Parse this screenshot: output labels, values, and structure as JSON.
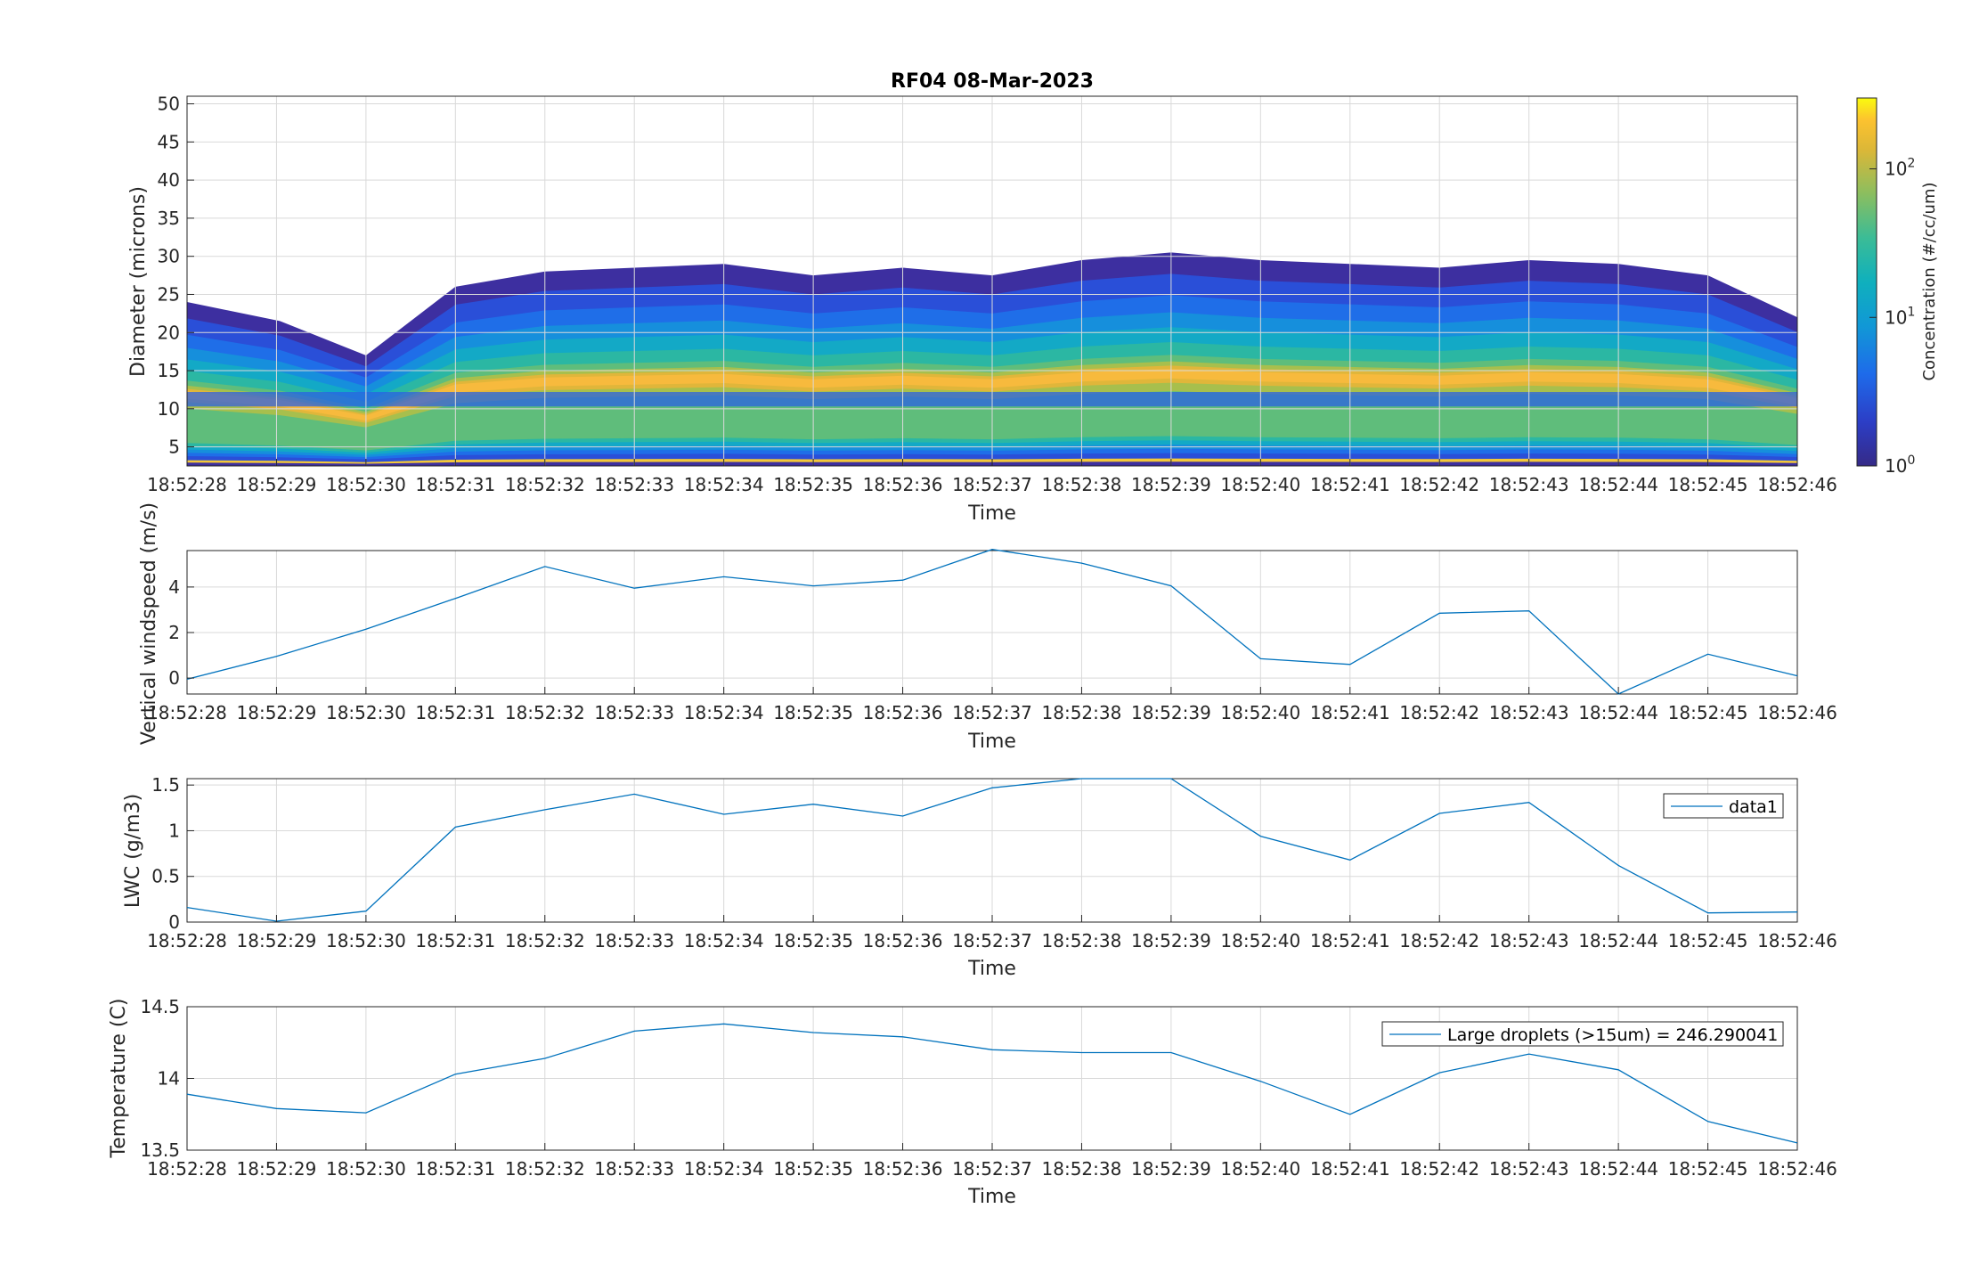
{
  "figure_title": "RF04 08-Mar-2023",
  "time_labels": [
    "18:52:28",
    "18:52:29",
    "18:52:30",
    "18:52:31",
    "18:52:32",
    "18:52:33",
    "18:52:34",
    "18:52:35",
    "18:52:36",
    "18:52:37",
    "18:52:38",
    "18:52:39",
    "18:52:40",
    "18:52:41",
    "18:52:42",
    "18:52:43",
    "18:52:44",
    "18:52:45",
    "18:52:46"
  ],
  "colors": {
    "line": "#0072BD",
    "grid": "#d9d9d9",
    "axis": "#262626"
  },
  "chart_data": [
    {
      "type": "heatmap",
      "title": "RF04 08-Mar-2023",
      "xlabel": "Time",
      "ylabel": "Diameter (microns)",
      "ylim": [
        2.5,
        51
      ],
      "yticks": [
        5,
        10,
        15,
        20,
        25,
        30,
        35,
        40,
        45,
        50
      ],
      "colorbar": {
        "label": "Concentration (#/cc/um)",
        "scale": "log",
        "range": [
          1,
          300
        ],
        "ticks": [
          {
            "base": "10",
            "exp": "0"
          },
          {
            "base": "10",
            "exp": "1"
          },
          {
            "base": "10",
            "exp": "2"
          }
        ],
        "colormap": "parula"
      },
      "top_contour_diameter": [
        24,
        21.5,
        17,
        26,
        28,
        28.5,
        29,
        27.5,
        28.5,
        27.5,
        29.5,
        30.5,
        29.5,
        29,
        28.5,
        29.5,
        29,
        27.5,
        22
      ]
    },
    {
      "type": "line",
      "xlabel": "Time",
      "ylabel": "Vertical windspeed (m/s)",
      "ylim": [
        -0.7,
        5.6
      ],
      "yticks": [
        0,
        2,
        4
      ],
      "series": [
        {
          "values": [
            -0.05,
            0.95,
            2.15,
            3.5,
            4.9,
            3.95,
            4.45,
            4.05,
            4.3,
            5.65,
            5.05,
            4.05,
            0.85,
            0.6,
            2.85,
            2.95,
            -0.7,
            1.05,
            0.1
          ]
        }
      ]
    },
    {
      "type": "line",
      "xlabel": "Time",
      "ylabel": "LWC (g/m3)",
      "ylim": [
        0,
        1.57
      ],
      "yticks": [
        0,
        0.5,
        1,
        1.5
      ],
      "legend": "top-right",
      "series": [
        {
          "name": "data1",
          "values": [
            0.16,
            0.01,
            0.12,
            1.04,
            1.23,
            1.4,
            1.18,
            1.29,
            1.16,
            1.47,
            1.57,
            1.57,
            0.94,
            0.68,
            1.19,
            1.31,
            0.62,
            0.1,
            0.11
          ]
        }
      ]
    },
    {
      "type": "line",
      "xlabel": "Time",
      "ylabel": "Temperature (C)",
      "ylim": [
        13.5,
        14.5
      ],
      "yticks": [
        13.5,
        14,
        14.5
      ],
      "legend": "top-right",
      "series": [
        {
          "name": "Large droplets (>15um) = 246.290041",
          "values": [
            13.89,
            13.79,
            13.76,
            14.03,
            14.14,
            14.33,
            14.38,
            14.32,
            14.29,
            14.2,
            14.18,
            14.18,
            13.98,
            13.75,
            14.04,
            14.17,
            14.06,
            13.7,
            13.55
          ]
        }
      ]
    }
  ]
}
